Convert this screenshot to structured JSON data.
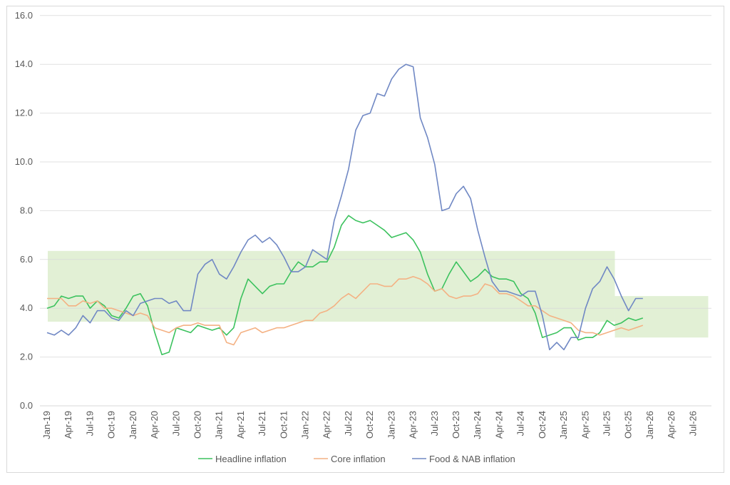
{
  "chart_data": {
    "type": "line",
    "title": "",
    "xlabel": "",
    "ylabel": "",
    "ylim": [
      0,
      16
    ],
    "yticks": [
      "0.0",
      "2.0",
      "4.0",
      "6.0",
      "8.0",
      "10.0",
      "12.0",
      "14.0",
      "16.0"
    ],
    "start_month": "Jan-19",
    "xtick_labels": [
      "Jan-19",
      "Apr-19",
      "Jul-19",
      "Oct-19",
      "Jan-20",
      "Apr-20",
      "Jul-20",
      "Oct-20",
      "Jan-21",
      "Apr-21",
      "Jul-21",
      "Oct-21",
      "Jan-22",
      "Apr-22",
      "Jul-22",
      "Oct-22",
      "Jan-23",
      "Apr-23",
      "Jul-23",
      "Oct-23",
      "Jan-24",
      "Apr-24",
      "Jul-24",
      "Oct-24",
      "Jan-25",
      "Apr-25",
      "Jul-25",
      "Oct-25",
      "Jan-26",
      "Apr-26",
      "Jul-26"
    ],
    "grid": true,
    "legend_position": "bottom",
    "bands": [
      {
        "from_month": 0,
        "to_month": 79,
        "low": 3.45,
        "high": 6.35,
        "color": "#e2f0d5"
      },
      {
        "from_month": 79,
        "to_month": 92,
        "low": 2.8,
        "high": 4.5,
        "color": "#e2f0d5"
      }
    ],
    "series": [
      {
        "name": "Headline inflation",
        "color": "#3cc25e",
        "values": [
          4.0,
          4.1,
          4.5,
          4.4,
          4.5,
          4.5,
          4.0,
          4.3,
          4.1,
          3.7,
          3.6,
          4.0,
          4.5,
          4.6,
          4.1,
          3.0,
          2.1,
          2.2,
          3.2,
          3.1,
          3.0,
          3.3,
          3.2,
          3.1,
          3.2,
          2.9,
          3.2,
          4.4,
          5.2,
          4.9,
          4.6,
          4.9,
          5.0,
          5.0,
          5.5,
          5.9,
          5.7,
          5.7,
          5.9,
          5.9,
          6.5,
          7.4,
          7.8,
          7.6,
          7.5,
          7.6,
          7.4,
          7.2,
          6.9,
          7.0,
          7.1,
          6.8,
          6.3,
          5.4,
          4.7,
          4.8,
          5.4,
          5.9,
          5.5,
          5.1,
          5.3,
          5.6,
          5.3,
          5.2,
          5.2,
          5.1,
          4.6,
          4.4,
          3.8,
          2.8,
          2.9,
          3.0,
          3.2,
          3.2,
          2.7,
          2.8,
          2.8,
          3.0,
          3.5,
          3.3,
          3.4,
          3.6,
          3.5,
          3.6
        ]
      },
      {
        "name": "Core inflation",
        "color": "#f4b183",
        "values": [
          4.4,
          4.4,
          4.4,
          4.1,
          4.1,
          4.3,
          4.2,
          4.3,
          4.0,
          4.0,
          3.9,
          3.8,
          3.7,
          3.8,
          3.7,
          3.2,
          3.1,
          3.0,
          3.2,
          3.3,
          3.3,
          3.4,
          3.3,
          3.3,
          3.3,
          2.6,
          2.5,
          3.0,
          3.1,
          3.2,
          3.0,
          3.1,
          3.2,
          3.2,
          3.3,
          3.4,
          3.5,
          3.5,
          3.8,
          3.9,
          4.1,
          4.4,
          4.6,
          4.4,
          4.7,
          5.0,
          5.0,
          4.9,
          4.9,
          5.2,
          5.2,
          5.3,
          5.2,
          5.0,
          4.7,
          4.8,
          4.5,
          4.4,
          4.5,
          4.5,
          4.6,
          5.0,
          4.9,
          4.6,
          4.6,
          4.5,
          4.3,
          4.1,
          4.1,
          3.9,
          3.7,
          3.6,
          3.5,
          3.4,
          3.1,
          3.0,
          3.0,
          2.9,
          3.0,
          3.1,
          3.2,
          3.1,
          3.2,
          3.3
        ]
      },
      {
        "name": "Food & NAB inflation",
        "color": "#7088c4",
        "values": [
          3.0,
          2.9,
          3.1,
          2.9,
          3.2,
          3.7,
          3.4,
          3.9,
          3.9,
          3.6,
          3.5,
          3.9,
          3.7,
          4.2,
          4.3,
          4.4,
          4.4,
          4.2,
          4.3,
          3.9,
          3.9,
          5.4,
          5.8,
          6.0,
          5.4,
          5.2,
          5.7,
          6.3,
          6.8,
          7.0,
          6.7,
          6.9,
          6.6,
          6.1,
          5.5,
          5.5,
          5.7,
          6.4,
          6.2,
          6.0,
          7.6,
          8.6,
          9.7,
          11.3,
          11.9,
          12.0,
          12.8,
          12.7,
          13.4,
          13.8,
          14.0,
          13.9,
          11.8,
          11.0,
          9.9,
          8.0,
          8.1,
          8.7,
          9.0,
          8.5,
          7.2,
          6.1,
          5.1,
          4.7,
          4.7,
          4.6,
          4.5,
          4.7,
          4.7,
          3.7,
          2.3,
          2.6,
          2.3,
          2.8,
          2.8,
          4.0,
          4.8,
          5.1,
          5.7,
          5.2,
          4.5,
          3.9,
          4.4,
          4.4
        ]
      }
    ]
  }
}
